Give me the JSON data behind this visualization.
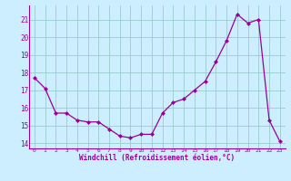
{
  "x": [
    0,
    1,
    2,
    3,
    4,
    5,
    6,
    7,
    8,
    9,
    10,
    11,
    12,
    13,
    14,
    15,
    16,
    17,
    18,
    19,
    20,
    21,
    22,
    23
  ],
  "y": [
    17.7,
    17.1,
    15.7,
    15.7,
    15.3,
    15.2,
    15.2,
    14.8,
    14.4,
    14.3,
    14.5,
    14.5,
    15.7,
    16.3,
    16.5,
    17.0,
    17.5,
    18.6,
    19.8,
    21.3,
    20.8,
    21.0,
    15.3,
    14.1
  ],
  "xlabel": "Windchill (Refroidissement éolien,°C)",
  "line_color": "#990099",
  "marker": "D",
  "marker_size": 2,
  "bg_color": "#cceeff",
  "grid_color": "#99cccc",
  "ylim": [
    13.7,
    21.8
  ],
  "xlim": [
    -0.5,
    23.5
  ],
  "yticks": [
    14,
    15,
    16,
    17,
    18,
    19,
    20,
    21
  ],
  "xticks": [
    0,
    1,
    2,
    3,
    4,
    5,
    6,
    7,
    8,
    9,
    10,
    11,
    12,
    13,
    14,
    15,
    16,
    17,
    18,
    19,
    20,
    21,
    22,
    23
  ]
}
